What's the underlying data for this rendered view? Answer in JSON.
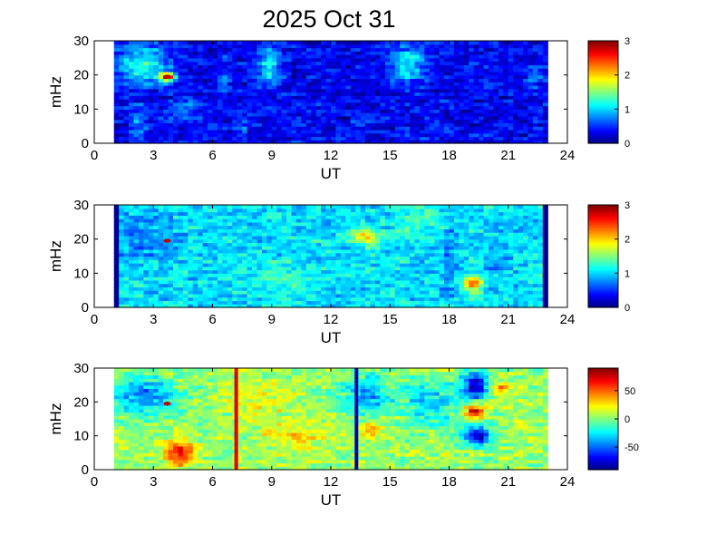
{
  "title": "2025 Oct 31",
  "chart_data": [
    {
      "type": "heatmap",
      "xlabel": "UT",
      "ylabel": "mHz",
      "xlim": [
        0,
        24
      ],
      "ylim": [
        0,
        30
      ],
      "xticks": [
        "0",
        "3",
        "6",
        "9",
        "12",
        "15",
        "18",
        "21",
        "24"
      ],
      "yticks": [
        "0",
        "10",
        "20",
        "30"
      ],
      "data_extent_x": [
        1,
        23
      ],
      "colorbar": {
        "range": [
          0,
          3
        ],
        "ticks": [
          "0",
          "1",
          "2",
          "3"
        ]
      },
      "base_value": 0.35,
      "features": [
        {
          "x": 2.5,
          "y": 23,
          "sx": 0.9,
          "sy": 4,
          "value": 1.3
        },
        {
          "x": 3.7,
          "y": 19.5,
          "sx": 0.25,
          "sy": 0.8,
          "value": 3.0
        },
        {
          "x": 2.2,
          "y": 7,
          "sx": 0.3,
          "sy": 2.5,
          "value": 0.9
        },
        {
          "x": 4.6,
          "y": 10.5,
          "sx": 0.6,
          "sy": 1.8,
          "value": 0.8
        },
        {
          "x": 7.5,
          "y": 4,
          "sx": 0.3,
          "sy": 3,
          "value": 0.6
        },
        {
          "x": 6.6,
          "y": 19,
          "sx": 0.2,
          "sy": 3,
          "value": 0.8
        },
        {
          "x": 8.9,
          "y": 23,
          "sx": 0.35,
          "sy": 4,
          "value": 1.2
        },
        {
          "x": 15.9,
          "y": 23.5,
          "sx": 0.6,
          "sy": 3.5,
          "value": 1.2
        },
        {
          "x": 22.3,
          "y": 19,
          "sx": 0.3,
          "sy": 3,
          "value": 0.7
        },
        {
          "x": 21.4,
          "y": 22,
          "sx": 0.25,
          "sy": 1.5,
          "value": 0.6
        },
        {
          "x": 13.5,
          "y": 6,
          "sx": 0.3,
          "sy": 0.5,
          "value": 0.6
        }
      ],
      "markers": [
        {
          "x": 3.7,
          "y": 19.5,
          "color": "#c00000"
        }
      ],
      "vlines": []
    },
    {
      "type": "heatmap",
      "xlabel": "UT",
      "ylabel": "mHz",
      "xlim": [
        0,
        24
      ],
      "ylim": [
        0,
        30
      ],
      "xticks": [
        "0",
        "3",
        "6",
        "9",
        "12",
        "15",
        "18",
        "21",
        "24"
      ],
      "yticks": [
        "0",
        "10",
        "20",
        "30"
      ],
      "data_extent_x": [
        1,
        23
      ],
      "colorbar": {
        "range": [
          0,
          3
        ],
        "ticks": [
          "0",
          "1",
          "2",
          "3"
        ]
      },
      "base_value": 1.05,
      "edge_value": 0.05,
      "features": [
        {
          "x": 2.2,
          "y": 20,
          "sx": 1.5,
          "sy": 5,
          "value": 0.8
        },
        {
          "x": 13.8,
          "y": 21,
          "sx": 0.5,
          "sy": 2,
          "value": 1.9
        },
        {
          "x": 19.2,
          "y": 7,
          "sx": 0.35,
          "sy": 1.5,
          "value": 2.3
        },
        {
          "x": 20.5,
          "y": 15,
          "sx": 0.6,
          "sy": 6,
          "value": 0.9
        },
        {
          "x": 9.5,
          "y": 9,
          "sx": 1.2,
          "sy": 3,
          "value": 1.3
        },
        {
          "x": 16.5,
          "y": 25,
          "sx": 1.0,
          "sy": 3,
          "value": 1.3
        },
        {
          "x": 18,
          "y": 15,
          "sx": 0.3,
          "sy": 10,
          "value": 0.8
        }
      ],
      "markers": [
        {
          "x": 3.7,
          "y": 19.5,
          "color": "#c00000"
        }
      ],
      "vlines": []
    },
    {
      "type": "heatmap",
      "xlabel": "UT",
      "ylabel": "mHz",
      "xlim": [
        0,
        24
      ],
      "ylim": [
        0,
        30
      ],
      "xticks": [
        "0",
        "3",
        "6",
        "9",
        "12",
        "15",
        "18",
        "21",
        "24"
      ],
      "yticks": [
        "0",
        "10",
        "20",
        "30"
      ],
      "data_extent_x": [
        1,
        23
      ],
      "colorbar": {
        "range": [
          -90,
          90
        ],
        "ticks": [
          "50",
          "0",
          "-50"
        ],
        "tick_values": [
          50,
          0,
          -50
        ]
      },
      "base_value": 5,
      "features": [
        {
          "x": 2.5,
          "y": 22,
          "sx": 1.2,
          "sy": 4,
          "value": -45
        },
        {
          "x": 4.3,
          "y": 5,
          "sx": 0.55,
          "sy": 2.5,
          "value": 65
        },
        {
          "x": 8.5,
          "y": 20,
          "sx": 1.2,
          "sy": 5,
          "value": 20
        },
        {
          "x": 10.5,
          "y": 10,
          "sx": 1.0,
          "sy": 3,
          "value": 25
        },
        {
          "x": 13.8,
          "y": 22,
          "sx": 0.8,
          "sy": 4,
          "value": -40
        },
        {
          "x": 14.0,
          "y": 12,
          "sx": 0.35,
          "sy": 2,
          "value": 40
        },
        {
          "x": 19.3,
          "y": 25,
          "sx": 0.5,
          "sy": 3,
          "value": -75
        },
        {
          "x": 19.3,
          "y": 17.5,
          "sx": 0.35,
          "sy": 1.5,
          "value": 75
        },
        {
          "x": 19.5,
          "y": 10,
          "sx": 0.5,
          "sy": 2,
          "value": -70
        },
        {
          "x": 20.6,
          "y": 23.5,
          "sx": 0.35,
          "sy": 1.5,
          "value": 45
        },
        {
          "x": 17,
          "y": 20,
          "sx": 1.0,
          "sy": 5,
          "value": -30
        }
      ],
      "markers": [
        {
          "x": 3.7,
          "y": 19.5,
          "color": "#c00000"
        }
      ],
      "vlines": [
        {
          "x": 7.2,
          "color": "#e00000"
        },
        {
          "x": 13.3,
          "color": "#0000b0"
        }
      ]
    }
  ]
}
